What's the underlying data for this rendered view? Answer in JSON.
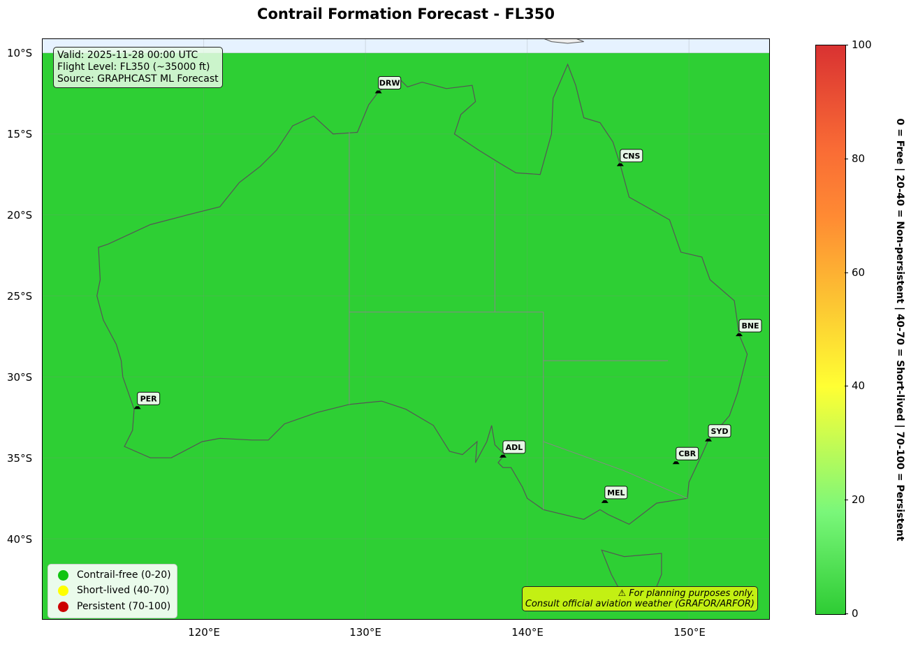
{
  "title": "Contrail Formation Forecast - FL350",
  "info": {
    "line1": "Valid: 2025-11-28 00:00 UTC",
    "line2": "Flight Level: FL350 (~35000 ft)",
    "line3": "Source: GRAPHCAST ML Forecast"
  },
  "disclaimer": {
    "line1": "⚠ For planning purposes only.",
    "line2": "Consult official aviation weather (GRAFOR/ARFOR)"
  },
  "legend": [
    {
      "label": "Contrail-free (0-20)",
      "color": "#11c411"
    },
    {
      "label": "Short-lived (40-70)",
      "color": "#ffff00"
    },
    {
      "label": "Persistent (70-100)",
      "color": "#cc0000"
    }
  ],
  "map": {
    "extent_lon": [
      110,
      155
    ],
    "extent_lat": [
      -9.1,
      -45
    ],
    "field_value": 0,
    "field_color": "#2ecf34",
    "nodata_color": "#e6f2ff",
    "x_ticks": [
      "120°E",
      "130°E",
      "140°E",
      "150°E"
    ],
    "y_ticks": [
      "10°S",
      "15°S",
      "20°S",
      "25°S",
      "30°S",
      "35°S",
      "40°S"
    ]
  },
  "airports": [
    {
      "code": "DRW",
      "lon": 130.8,
      "lat": -12.4
    },
    {
      "code": "CNS",
      "lon": 145.75,
      "lat": -16.9
    },
    {
      "code": "BNE",
      "lon": 153.1,
      "lat": -27.4
    },
    {
      "code": "SYD",
      "lon": 151.2,
      "lat": -33.9
    },
    {
      "code": "CBR",
      "lon": 149.2,
      "lat": -35.3
    },
    {
      "code": "MEL",
      "lon": 144.8,
      "lat": -37.7
    },
    {
      "code": "ADL",
      "lon": 138.5,
      "lat": -34.9
    },
    {
      "code": "PER",
      "lon": 115.9,
      "lat": -31.9
    }
  ],
  "colorbar": {
    "ticks": [
      "0",
      "20",
      "40",
      "60",
      "80",
      "100"
    ],
    "range": [
      0,
      100
    ],
    "label": "0 = Free  |  20-40 = Non-persistent  |  40-70 = Short-lived  |  70-100 = Persistent"
  }
}
